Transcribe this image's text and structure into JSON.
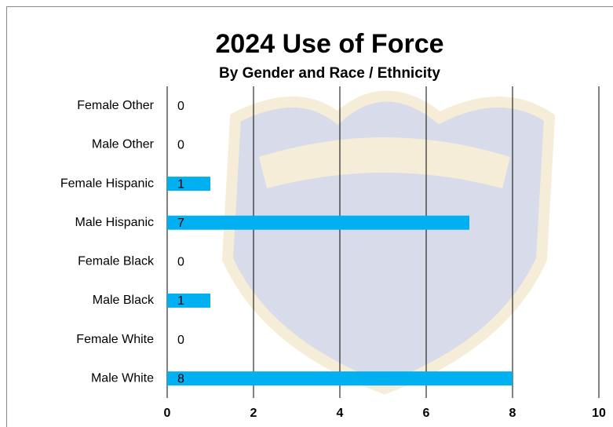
{
  "chart_data": {
    "type": "bar",
    "orientation": "horizontal",
    "title": "2024  Use of Force",
    "subtitle": "By Gender and Race / Ethnicity",
    "categories": [
      "Female Other",
      "Male Other",
      "Female Hispanic",
      "Male Hispanic",
      "Female Black",
      "Male Black",
      "Female White",
      "Male White"
    ],
    "values": [
      0,
      0,
      1,
      7,
      0,
      1,
      0,
      8
    ],
    "color": "#00b0f0",
    "xlim": [
      0,
      10
    ],
    "xticks": [
      0,
      2,
      4,
      6,
      8,
      10
    ],
    "grid": true
  }
}
